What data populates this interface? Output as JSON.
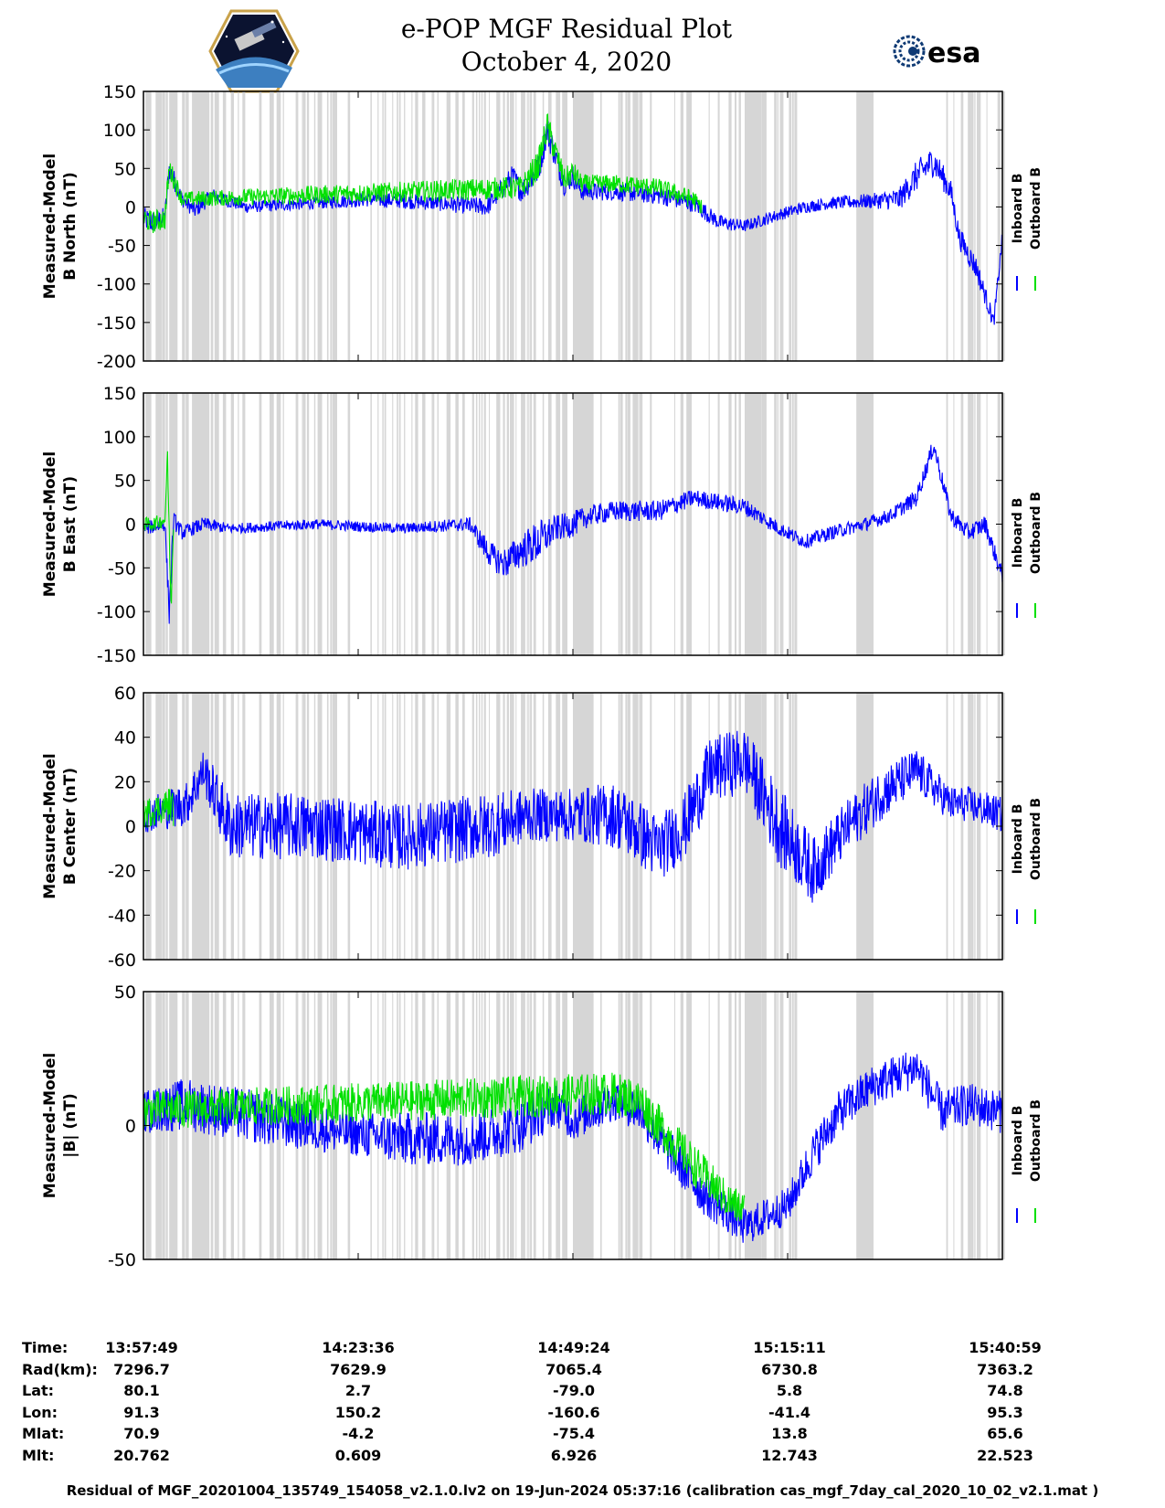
{
  "title": {
    "line1": "e-POP MGF Residual Plot",
    "line2": "October 4, 2020"
  },
  "logos": {
    "left": "cassiope-mission-logo",
    "right_text": "esa",
    "right_icon": "esa-swirl-icon"
  },
  "colors": {
    "inboard": "#0000ff",
    "outboard": "#00e000",
    "gap_shade": "#d6d6d6",
    "axis": "#000000"
  },
  "chart_data": [
    {
      "type": "line",
      "id": "b-north",
      "ylabel": [
        "Measured-Model",
        "B North (nT)"
      ],
      "ylim": [
        -200,
        150
      ],
      "yticks": [
        "150",
        "100",
        "50",
        "0",
        "-50",
        "-100",
        "-150",
        "-200"
      ],
      "ytick_values": [
        150,
        100,
        50,
        0,
        -50,
        -100,
        -150,
        -200
      ],
      "legend": [
        "Inboard B",
        "Outboard B"
      ],
      "series": [
        {
          "name": "Inboard B",
          "x": [
            0,
            0.01,
            0.025,
            0.03,
            0.045,
            0.06,
            0.08,
            0.12,
            0.2,
            0.26,
            0.3,
            0.34,
            0.4,
            0.43,
            0.44,
            0.46,
            0.47,
            0.49,
            0.5,
            0.51,
            0.52,
            0.55,
            0.6,
            0.64,
            0.67,
            0.7,
            0.74,
            0.77,
            0.8,
            0.85,
            0.88,
            0.9,
            0.92,
            0.94,
            0.95,
            0.97,
            0.99,
            1.0
          ],
          "values": [
            -15,
            -20,
            -15,
            50,
            10,
            -5,
            15,
            0,
            5,
            10,
            8,
            5,
            0,
            40,
            20,
            50,
            100,
            30,
            40,
            20,
            20,
            20,
            15,
            5,
            -20,
            -25,
            -10,
            0,
            5,
            8,
            10,
            40,
            60,
            20,
            -40,
            -80,
            -150,
            -40
          ],
          "noise": [
            15,
            15,
            15,
            15,
            10,
            10,
            10,
            8,
            8,
            10,
            10,
            10,
            12,
            15,
            15,
            20,
            20,
            15,
            15,
            12,
            12,
            12,
            12,
            12,
            10,
            8,
            8,
            8,
            8,
            10,
            15,
            20,
            20,
            15,
            15,
            15,
            10,
            10
          ]
        },
        {
          "name": "Outboard B",
          "x": [
            0,
            0.01,
            0.025,
            0.03,
            0.045,
            0.44,
            0.46,
            0.47,
            0.49,
            0.5,
            0.51,
            0.52,
            0.55,
            0.6,
            0.64,
            0.65
          ],
          "values": [
            -15,
            -20,
            -15,
            50,
            10,
            25,
            55,
            105,
            35,
            45,
            30,
            30,
            30,
            25,
            10,
            0
          ],
          "noise": [
            15,
            15,
            15,
            15,
            10,
            15,
            20,
            20,
            15,
            15,
            12,
            12,
            12,
            12,
            12,
            10
          ]
        }
      ]
    },
    {
      "type": "line",
      "id": "b-east",
      "ylabel": [
        "Measured-Model",
        "B East (nT)"
      ],
      "ylim": [
        -150,
        150
      ],
      "yticks": [
        "150",
        "100",
        "50",
        "0",
        "-50",
        "-100",
        "-150"
      ],
      "ytick_values": [
        150,
        100,
        50,
        0,
        -50,
        -100,
        -150
      ],
      "legend": [
        "Inboard B",
        "Outboard B"
      ],
      "series": [
        {
          "name": "Inboard B",
          "x": [
            0,
            0.025,
            0.03,
            0.035,
            0.045,
            0.07,
            0.1,
            0.2,
            0.3,
            0.38,
            0.4,
            0.41,
            0.42,
            0.44,
            0.46,
            0.48,
            0.5,
            0.52,
            0.55,
            0.6,
            0.64,
            0.67,
            0.7,
            0.74,
            0.77,
            0.8,
            0.84,
            0.87,
            0.9,
            0.92,
            0.94,
            0.96,
            0.98,
            1.0
          ],
          "values": [
            -5,
            0,
            -100,
            5,
            -10,
            0,
            -5,
            0,
            -5,
            0,
            -30,
            -40,
            -45,
            -30,
            -20,
            -5,
            0,
            10,
            15,
            15,
            30,
            25,
            20,
            -5,
            -20,
            -10,
            0,
            10,
            30,
            90,
            10,
            -10,
            0,
            -60
          ],
          "noise": [
            8,
            8,
            15,
            10,
            8,
            8,
            6,
            6,
            6,
            8,
            15,
            15,
            18,
            20,
            25,
            15,
            15,
            12,
            12,
            12,
            10,
            10,
            10,
            8,
            8,
            8,
            8,
            8,
            10,
            10,
            10,
            10,
            10,
            10
          ]
        },
        {
          "name": "Outboard B",
          "x": [
            0,
            0.01,
            0.025,
            0.028,
            0.032,
            0.035
          ],
          "values": [
            0,
            0,
            5,
            80,
            -100,
            0
          ],
          "noise": [
            8,
            8,
            8,
            10,
            10,
            8
          ]
        }
      ]
    },
    {
      "type": "line",
      "id": "b-center",
      "ylabel": [
        "Measured-Model",
        "B Center (nT)"
      ],
      "ylim": [
        -60,
        60
      ],
      "yticks": [
        "60",
        "40",
        "20",
        "0",
        "-20",
        "-40",
        "-60"
      ],
      "ytick_values": [
        60,
        40,
        20,
        0,
        -20,
        -40,
        -60
      ],
      "legend": [
        "Inboard B",
        "Outboard B"
      ],
      "series": [
        {
          "name": "Inboard B",
          "x": [
            0,
            0.05,
            0.07,
            0.1,
            0.2,
            0.3,
            0.4,
            0.45,
            0.5,
            0.55,
            0.6,
            0.63,
            0.66,
            0.7,
            0.74,
            0.78,
            0.82,
            0.86,
            0.9,
            0.94,
            0.96,
            1.0
          ],
          "values": [
            5,
            10,
            25,
            0,
            0,
            -5,
            0,
            5,
            5,
            5,
            -10,
            0,
            25,
            30,
            0,
            -20,
            0,
            15,
            25,
            10,
            10,
            5
          ],
          "noise": [
            8,
            10,
            10,
            15,
            15,
            15,
            15,
            12,
            12,
            15,
            15,
            15,
            15,
            15,
            18,
            15,
            12,
            12,
            10,
            8,
            8,
            8
          ]
        },
        {
          "name": "Outboard B",
          "x": [
            0,
            0.01,
            0.02,
            0.03,
            0.035
          ],
          "values": [
            5,
            7,
            8,
            10,
            8
          ],
          "noise": [
            7,
            7,
            7,
            8,
            8
          ]
        }
      ]
    },
    {
      "type": "line",
      "id": "b-magnitude",
      "ylabel": [
        "Measured-Model",
        "|B| (nT)"
      ],
      "ylim": [
        -50,
        50
      ],
      "yticks": [
        "50",
        "0",
        "-50"
      ],
      "ytick_values": [
        50,
        0,
        -50
      ],
      "legend": [
        "Inboard B",
        "Outboard B"
      ],
      "series": [
        {
          "name": "Inboard B",
          "x": [
            0,
            0.05,
            0.15,
            0.24,
            0.3,
            0.38,
            0.44,
            0.48,
            0.5,
            0.55,
            0.58,
            0.6,
            0.65,
            0.7,
            0.75,
            0.78,
            0.81,
            0.85,
            0.9,
            0.93,
            0.96,
            1.0
          ],
          "values": [
            5,
            8,
            2,
            -3,
            -5,
            -5,
            0,
            8,
            2,
            10,
            5,
            -5,
            -25,
            -38,
            -30,
            -10,
            5,
            15,
            22,
            5,
            8,
            5
          ],
          "noise": [
            8,
            10,
            10,
            8,
            10,
            10,
            10,
            8,
            8,
            8,
            8,
            8,
            8,
            7,
            7,
            8,
            8,
            8,
            8,
            8,
            8,
            8
          ]
        },
        {
          "name": "Outboard B",
          "x": [
            0,
            0.01,
            0.02,
            0.03,
            0.035,
            0.55,
            0.58,
            0.6,
            0.65,
            0.68,
            0.7
          ],
          "values": [
            5,
            6,
            6,
            7,
            6,
            12,
            9,
            0,
            -18,
            -28,
            -32
          ],
          "noise": [
            7,
            7,
            7,
            7,
            7,
            8,
            8,
            8,
            8,
            7,
            7
          ]
        }
      ]
    }
  ],
  "x_axis": {
    "tick_values": [
      0,
      0.25,
      0.5,
      0.75,
      1.0
    ]
  },
  "info": {
    "labels": [
      "Time:",
      "Rad(km):",
      "Lat:",
      "Lon:",
      "Mlat:",
      "Mlt:"
    ],
    "columns": [
      [
        "13:57:49",
        "7296.7",
        "80.1",
        "91.3",
        "70.9",
        "20.762"
      ],
      [
        "14:23:36",
        "7629.9",
        "2.7",
        "150.2",
        "-4.2",
        "0.609"
      ],
      [
        "14:49:24",
        "7065.4",
        "-79.0",
        "-160.6",
        "-75.4",
        "6.926"
      ],
      [
        "15:15:11",
        "6730.8",
        "5.8",
        "-41.4",
        "13.8",
        "12.743"
      ],
      [
        "15:40:59",
        "7363.2",
        "74.8",
        "95.3",
        "65.6",
        "22.523"
      ]
    ]
  },
  "footer": "Residual of MGF_20201004_135749_154058_v2.1.0.lv2 on 19-Jun-2024 05:37:16 (calibration cas_mgf_7day_cal_2020_10_02_v2.1.mat )"
}
